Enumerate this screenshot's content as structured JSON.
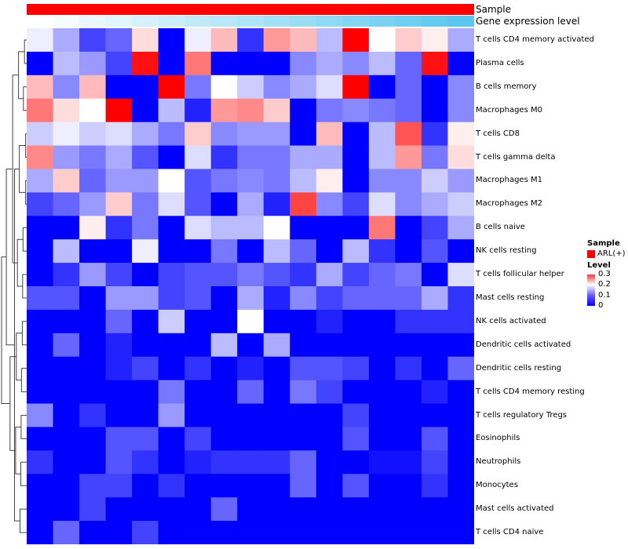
{
  "chart_data": {
    "type": "heatmap",
    "annotation_tracks": [
      {
        "label": "Sample",
        "color": "#ff0000"
      },
      {
        "label": "Gene expression level",
        "color_low": "#ffffff",
        "color_high": "#5ac8ee"
      }
    ],
    "rows": [
      "T cells CD4 memory activated",
      "Plasma cells",
      "B cells memory",
      "Macrophages M0",
      "T cells CD8",
      "T cells gamma delta",
      "Macrophages M1",
      "Macrophages M2",
      "B cells naive",
      "NK cells resting",
      "T cells follicular helper",
      "Mast cells resting",
      "NK cells activated",
      "Dendritic cells activated",
      "Dendritic cells resting",
      "T cells CD4 memory resting",
      "T cells regulatory  Tregs",
      "Eosinophils",
      "Neutrophils",
      "Monocytes",
      "Mast cells activated",
      "T cells CD4 naive"
    ],
    "n_columns": 17,
    "values": [
      [
        0.14,
        0.1,
        0.04,
        0.06,
        0.17,
        0.0,
        0.14,
        0.19,
        0.03,
        0.21,
        0.19,
        0.11,
        0.3,
        0.15,
        0.18,
        0.16,
        0.1
      ],
      [
        0.0,
        0.11,
        0.09,
        0.04,
        0.29,
        0.0,
        0.23,
        0.0,
        0.0,
        0.0,
        0.08,
        0.1,
        0.08,
        0.11,
        0.06,
        0.29,
        0.0
      ],
      [
        0.19,
        0.08,
        0.19,
        0.0,
        0.0,
        0.3,
        0.07,
        0.15,
        0.12,
        0.08,
        0.1,
        0.13,
        0.3,
        0.0,
        0.06,
        0.0,
        0.08
      ],
      [
        0.23,
        0.17,
        0.15,
        0.3,
        0.0,
        0.11,
        0.02,
        0.21,
        0.22,
        0.18,
        0.0,
        0.07,
        0.08,
        0.07,
        0.06,
        0.0,
        0.08
      ],
      [
        0.12,
        0.14,
        0.12,
        0.13,
        0.1,
        0.07,
        0.18,
        0.08,
        0.09,
        0.09,
        0.0,
        0.19,
        0.0,
        0.11,
        0.25,
        0.03,
        0.16
      ],
      [
        0.22,
        0.09,
        0.07,
        0.1,
        0.05,
        0.0,
        0.13,
        0.03,
        0.07,
        0.07,
        0.1,
        0.1,
        0.0,
        0.11,
        0.21,
        0.07,
        0.17
      ],
      [
        0.1,
        0.18,
        0.06,
        0.09,
        0.09,
        0.15,
        0.05,
        0.07,
        0.08,
        0.07,
        0.11,
        0.16,
        0.0,
        0.08,
        0.08,
        0.12,
        0.09
      ],
      [
        0.04,
        0.06,
        0.09,
        0.18,
        0.07,
        0.13,
        0.05,
        0.0,
        0.1,
        0.02,
        0.26,
        0.08,
        0.04,
        0.13,
        0.08,
        0.1,
        0.12
      ],
      [
        0.0,
        0.0,
        0.16,
        0.03,
        0.07,
        0.0,
        0.13,
        0.11,
        0.11,
        0.15,
        0.0,
        0.0,
        0.0,
        0.23,
        0.0,
        0.04,
        0.1
      ],
      [
        0.0,
        0.11,
        0.0,
        0.0,
        0.14,
        0.0,
        0.0,
        0.07,
        0.0,
        0.11,
        0.06,
        0.0,
        0.11,
        0.03,
        0.0,
        0.05,
        0.0
      ],
      [
        0.0,
        0.03,
        0.09,
        0.04,
        0.0,
        0.04,
        0.05,
        0.05,
        0.07,
        0.05,
        0.03,
        0.1,
        0.04,
        0.06,
        0.07,
        0.0,
        0.13
      ],
      [
        0.05,
        0.05,
        0.0,
        0.09,
        0.09,
        0.04,
        0.05,
        0.0,
        0.1,
        0.02,
        0.08,
        0.04,
        0.06,
        0.06,
        0.06,
        0.1,
        0.03
      ],
      [
        0.0,
        0.0,
        0.0,
        0.06,
        0.0,
        0.12,
        0.0,
        0.0,
        0.15,
        0.0,
        0.0,
        0.02,
        0.0,
        0.0,
        0.03,
        0.03,
        0.03
      ],
      [
        0.0,
        0.06,
        0.0,
        0.02,
        0.0,
        0.0,
        0.0,
        0.11,
        0.0,
        0.1,
        0.0,
        0.0,
        0.0,
        0.0,
        0.0,
        0.0,
        0.0
      ],
      [
        0.0,
        0.0,
        0.0,
        0.02,
        0.04,
        0.0,
        0.03,
        0.0,
        0.02,
        0.0,
        0.05,
        0.05,
        0.04,
        0.0,
        0.03,
        0.0,
        0.06
      ],
      [
        0.0,
        0.0,
        0.0,
        0.0,
        0.0,
        0.07,
        0.0,
        0.0,
        0.06,
        0.0,
        0.07,
        0.04,
        0.0,
        0.0,
        0.0,
        0.02,
        0.0
      ],
      [
        0.08,
        0.0,
        0.03,
        0.0,
        0.0,
        0.09,
        0.0,
        0.0,
        0.0,
        0.0,
        0.0,
        0.0,
        0.04,
        0.0,
        0.0,
        0.0,
        0.0
      ],
      [
        0.0,
        0.0,
        0.0,
        0.05,
        0.05,
        0.0,
        0.04,
        0.0,
        0.0,
        0.0,
        0.0,
        0.0,
        0.05,
        0.0,
        0.0,
        0.05,
        0.0
      ],
      [
        0.03,
        0.0,
        0.0,
        0.05,
        0.03,
        0.0,
        0.02,
        0.03,
        0.03,
        0.03,
        0.06,
        0.0,
        0.0,
        0.01,
        0.01,
        0.04,
        0.0
      ],
      [
        0.0,
        0.0,
        0.04,
        0.04,
        0.0,
        0.03,
        0.0,
        0.0,
        0.0,
        0.0,
        0.06,
        0.0,
        0.05,
        0.0,
        0.0,
        0.03,
        0.0
      ],
      [
        0.0,
        0.0,
        0.04,
        0.0,
        0.0,
        0.0,
        0.0,
        0.06,
        0.0,
        0.0,
        0.0,
        0.0,
        0.0,
        0.0,
        0.0,
        0.0,
        0.0
      ],
      [
        0.0,
        0.06,
        0.0,
        0.0,
        0.04,
        0.0,
        0.0,
        0.0,
        0.0,
        0.0,
        0.0,
        0.0,
        0.0,
        0.0,
        0.0,
        0.0,
        0.0
      ]
    ],
    "color_scale": {
      "min": 0,
      "max": 0.3,
      "low": "#0000ff",
      "mid": "#ffffff",
      "high": "#ff0000"
    },
    "legend": {
      "sample_title": "Sample",
      "sample_entry": "ARL(+)",
      "level_title": "Level",
      "ticks": [
        "0.3",
        "0.2",
        "0.1",
        "0"
      ],
      "tick_values": [
        0.3,
        0.2,
        0.1,
        0
      ]
    },
    "dendrogram": {
      "merges": [
        [
          4,
          5
        ],
        [
          6,
          7
        ],
        [
          0,
          1
        ],
        [
          2,
          3
        ],
        [
          8,
          9
        ],
        [
          10,
          11
        ],
        [
          12,
          13
        ],
        [
          14,
          15
        ],
        [
          16,
          17
        ],
        [
          18,
          19
        ],
        [
          20,
          21
        ],
        [
          22,
          23
        ],
        [
          24,
          25
        ],
        [
          26,
          27
        ],
        [
          28,
          29
        ],
        [
          30,
          31
        ],
        [
          32,
          33
        ],
        [
          34,
          35
        ],
        [
          36,
          37
        ],
        [
          38,
          39
        ],
        [
          40,
          41
        ]
      ],
      "heights": [
        0.3,
        0.3,
        0.6,
        0.9,
        1.0,
        1.1,
        1.2,
        1.4,
        1.5,
        1.6,
        1.8,
        2.0,
        2.2,
        2.5,
        2.8,
        3.0,
        3.3,
        3.8,
        4.5,
        5.5,
        6.8
      ],
      "max_height": 6.8
    }
  }
}
